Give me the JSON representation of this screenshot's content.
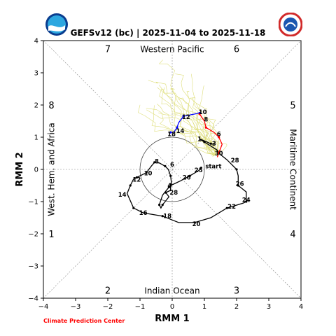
{
  "title": "GEFSv12 (bc) | 2025-11-04 to 2025-11-18",
  "credit": "Climate Prediction Center",
  "logos": {
    "left": "noaa-logo",
    "right": "national-weather-service-logo"
  },
  "colors": {
    "observed_black": "#000000",
    "observed_blue": "#0000ff",
    "forecast_mean_red": "#ff0000",
    "ensemble_yellow": "#dede7a",
    "grid_gray": "#888888"
  },
  "chart_data": {
    "type": "line",
    "xlabel": "RMM 1",
    "ylabel": "RMM 2",
    "xlim": [
      -4,
      4
    ],
    "ylim": [
      -4,
      4
    ],
    "xticks": [
      -4,
      -3,
      -2,
      -1,
      0,
      1,
      2,
      3,
      4
    ],
    "yticks": [
      -4,
      -3,
      -2,
      -1,
      0,
      1,
      2,
      3,
      4
    ],
    "phase_numbers": [
      "1",
      "2",
      "3",
      "4",
      "5",
      "6",
      "7",
      "8"
    ],
    "region_labels": {
      "top": "Western Pacific",
      "bottom": "Indian Ocean",
      "left": "West. Hem. and Africa",
      "right": "Maritime Continent"
    },
    "unit_circle_radius": 1,
    "series": [
      {
        "role": "observed",
        "color": "#000000",
        "labels": [
          "start",
          "25",
          "26",
          "28",
          "4",
          "6",
          "8",
          "10",
          "12",
          "14",
          "16",
          "18",
          "20",
          "22",
          "24",
          "26",
          "28",
          "30",
          "1",
          "3"
        ],
        "points": [
          [
            0.9,
            0.05
          ],
          [
            0.85,
            -0.02
          ],
          [
            0.55,
            -0.2
          ],
          [
            0.25,
            -0.36
          ],
          [
            -0.05,
            -0.5
          ],
          [
            -0.05,
            -0.65
          ],
          [
            -0.2,
            -0.72
          ],
          [
            -0.1,
            -0.85
          ],
          [
            -0.3,
            -1.1
          ],
          [
            -0.35,
            -1.2
          ],
          [
            -0.4,
            -1.1
          ],
          [
            -0.3,
            -0.8
          ],
          [
            -0.1,
            -0.55
          ],
          [
            -0.02,
            -0.45
          ],
          [
            -0.05,
            -0.2
          ],
          [
            -0.12,
            0.0
          ],
          [
            -0.22,
            0.1
          ],
          [
            -0.4,
            0.2
          ],
          [
            -0.55,
            0.22
          ],
          [
            -0.65,
            0.1
          ],
          [
            -0.8,
            -0.1
          ],
          [
            -0.9,
            -0.15
          ],
          [
            -1.1,
            -0.25
          ],
          [
            -1.2,
            -0.3
          ],
          [
            -1.3,
            -0.5
          ],
          [
            -1.4,
            -0.75
          ],
          [
            -1.2,
            -1.2
          ],
          [
            -0.9,
            -1.35
          ],
          [
            -0.3,
            -1.45
          ],
          [
            0.2,
            -1.65
          ],
          [
            0.7,
            -1.65
          ],
          [
            1.2,
            -1.5
          ],
          [
            1.7,
            -1.2
          ],
          [
            2.2,
            -1.05
          ],
          [
            2.3,
            -1.0
          ],
          [
            2.3,
            -0.7
          ],
          [
            2.05,
            -0.5
          ],
          [
            2.05,
            -0.2
          ],
          [
            2.0,
            0.0
          ],
          [
            1.7,
            0.3
          ],
          [
            1.45,
            0.5
          ],
          [
            1.4,
            0.6
          ],
          [
            1.0,
            0.85
          ],
          [
            0.85,
            0.95
          ],
          [
            1.2,
            0.8
          ],
          [
            1.3,
            0.78
          ]
        ]
      },
      {
        "role": "observed-recent",
        "color": "#0000ff",
        "labels": [
          "10",
          "12",
          "14",
          "18"
        ],
        "points": [
          [
            0.85,
            1.75
          ],
          [
            0.6,
            1.7
          ],
          [
            0.35,
            1.65
          ],
          [
            0.2,
            1.45
          ],
          [
            0.15,
            1.3
          ],
          [
            0.05,
            1.15
          ],
          [
            -0.05,
            1.15
          ],
          [
            -0.1,
            1.12
          ]
        ]
      },
      {
        "role": "forecast-mean",
        "color": "#ff0000",
        "labels": [
          "8",
          "6",
          "3"
        ],
        "points": [
          [
            0.85,
            1.72
          ],
          [
            1.0,
            1.5
          ],
          [
            1.05,
            1.3
          ],
          [
            1.3,
            1.15
          ],
          [
            1.45,
            1.0
          ],
          [
            1.55,
            0.78
          ],
          [
            1.45,
            0.52
          ],
          [
            1.4,
            0.38
          ]
        ]
      }
    ]
  }
}
